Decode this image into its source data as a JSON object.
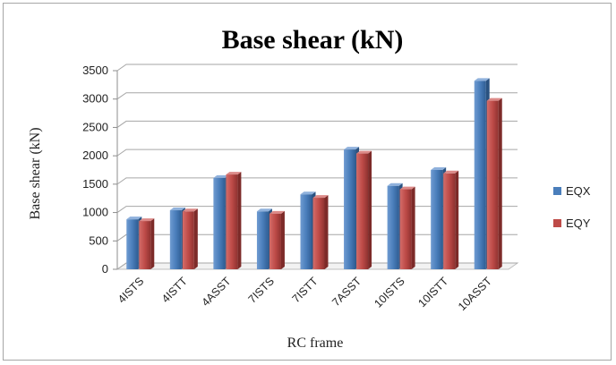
{
  "chart_data": {
    "type": "bar",
    "title": "Base shear (kN)",
    "xlabel": "RC frame",
    "ylabel": "Base shear (kN)",
    "categories": [
      "4ISTS",
      "4ISTT",
      "4ASST",
      "7ISTS",
      "7ISTT",
      "7ASST",
      "10ISTS",
      "10ISTT",
      "10ASST"
    ],
    "series": [
      {
        "name": "EQX",
        "values": [
          880,
          1040,
          1610,
          1020,
          1320,
          2110,
          1470,
          1750,
          3320
        ],
        "color": "#4a7ebb"
      },
      {
        "name": "EQY",
        "values": [
          850,
          1020,
          1670,
          980,
          1260,
          2040,
          1410,
          1690,
          2970
        ],
        "color": "#be4b48"
      }
    ],
    "ylim": [
      0,
      3500
    ],
    "yticks": [
      0,
      500,
      1000,
      1500,
      2000,
      2500,
      3000,
      3500
    ],
    "grid": true,
    "legend_position": "right"
  }
}
